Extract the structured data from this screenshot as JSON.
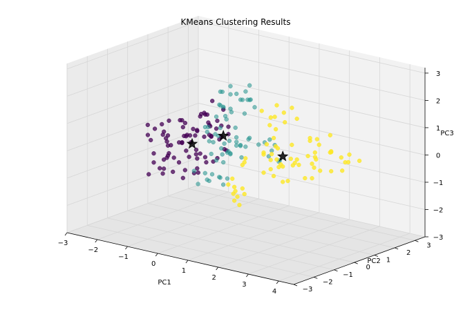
{
  "chart_data": {
    "type": "scatter",
    "projection": "3d",
    "title": "KMeans Clustering Results",
    "xlabel": "PC1",
    "ylabel": "PC2",
    "zlabel": "PC3",
    "xlim": [
      -3,
      4.5
    ],
    "ylim": [
      -3,
      3.5
    ],
    "zlim": [
      -3,
      3.2
    ],
    "x_ticks": [
      "−3",
      "−2",
      "−1",
      "0",
      "1",
      "2",
      "3",
      "4"
    ],
    "y_ticks": [
      "−3",
      "−2",
      "−1",
      "0",
      "1",
      "2",
      "3"
    ],
    "z_ticks": [
      "−3",
      "−2",
      "−1",
      "0",
      "1",
      "2",
      "3"
    ],
    "grid": true,
    "colors": {
      "cluster_0": "#440154",
      "cluster_1": "#21918c",
      "cluster_2": "#fde725",
      "pane_left": "#ebebeb",
      "pane_back": "#f2f2f2",
      "pane_floor": "#e5e5e5",
      "grid": "#d6d6d6"
    },
    "series": [
      {
        "cluster": 0,
        "color": "#440154",
        "alpha": 0.75,
        "x": [
          -1.5,
          -1.2,
          -1.0,
          -0.9,
          -1.3,
          -0.7,
          -1.1,
          -0.5,
          -0.9,
          -1.7,
          -1.4,
          -0.6,
          -1.0,
          -0.8,
          -1.2,
          -0.4,
          -0.3,
          -1.6,
          -0.7,
          -1.1,
          -0.9,
          -1.3,
          -0.5,
          -0.8,
          -1.0,
          -0.2,
          -0.6,
          -1.4,
          -0.9,
          -1.2,
          -0.7,
          -0.5,
          -1.1,
          -0.8,
          -0.3,
          -1.5,
          -1.0,
          -0.6,
          -0.9,
          -1.3,
          -0.7,
          -0.4,
          -1.2,
          -0.8,
          -1.0,
          -0.5,
          -1.6,
          -0.9,
          -0.6,
          -1.1,
          -2.2,
          -2.0,
          -1.8,
          -2.4,
          -1.9,
          -2.1,
          -1.7,
          -1.5,
          -2.3,
          -1.8,
          -0.1,
          -0.2,
          0.0,
          -0.3,
          -0.1,
          -0.4,
          0.1,
          -0.2,
          -0.5,
          -0.3,
          -0.8,
          -1.0,
          -0.7,
          -0.9,
          -0.6,
          -1.2,
          -1.4,
          -1.1,
          -0.5,
          -0.6
        ],
        "y": [
          -0.5,
          0.2,
          0.6,
          -0.3,
          0.4,
          0.0,
          -0.8,
          0.5,
          1.0,
          0.1,
          -0.4,
          0.8,
          0.3,
          -0.6,
          0.7,
          0.2,
          -0.2,
          -0.1,
          0.4,
          1.2,
          -1.0,
          0.0,
          0.9,
          0.1,
          -0.3,
          0.6,
          -0.5,
          0.5,
          0.3,
          -0.7,
          1.1,
          -0.1,
          0.2,
          0.7,
          0.4,
          0.3,
          -0.2,
          0.0,
          -0.4,
          0.9,
          0.6,
          1.0,
          -0.1,
          0.2,
          0.8,
          -0.6,
          0.6,
          0.1,
          0.3,
          0.5,
          -0.2,
          0.4,
          0.0,
          0.1,
          -0.5,
          0.6,
          0.9,
          -0.3,
          0.3,
          -0.1,
          0.1,
          -0.4,
          0.5,
          0.7,
          -0.2,
          0.3,
          0.0,
          0.8,
          0.2,
          -0.6,
          -1.5,
          -1.2,
          -1.7,
          -0.9,
          -1.3,
          -1.4,
          -1.1,
          -1.8,
          -1.0,
          -2.0
        ],
        "z": [
          0.3,
          -0.4,
          0.8,
          -0.9,
          0.1,
          0.5,
          -0.2,
          -0.7,
          0.0,
          0.6,
          -0.1,
          0.4,
          -1.2,
          0.2,
          -0.5,
          0.7,
          -0.3,
          -0.6,
          1.0,
          0.3,
          0.2,
          -0.8,
          0.1,
          -0.4,
          0.9,
          -0.2,
          0.5,
          0.0,
          -1.0,
          0.4,
          -0.1,
          1.2,
          -0.6,
          0.6,
          -0.5,
          -0.2,
          0.3,
          -0.3,
          0.7,
          -0.9,
          0.2,
          -0.4,
          0.8,
          -1.1,
          0.0,
          0.3,
          -0.3,
          0.5,
          -0.7,
          0.1,
          0.4,
          -0.2,
          0.2,
          -0.1,
          0.0,
          -0.4,
          0.3,
          -0.6,
          0.1,
          0.5,
          1.0,
          1.4,
          0.7,
          1.2,
          0.5,
          1.6,
          0.9,
          0.3,
          1.1,
          0.8,
          -0.5,
          -0.3,
          -0.6,
          -0.8,
          -0.1,
          -0.4,
          -0.2,
          -0.7,
          -0.9,
          -0.3
        ]
      },
      {
        "cluster": 1,
        "color": "#21918c",
        "alpha": 0.55,
        "x": [
          0.0,
          0.2,
          -0.3,
          0.4,
          0.1,
          -0.2,
          0.5,
          0.3,
          -0.1,
          0.6,
          0.0,
          0.2,
          0.4,
          -0.4,
          0.1,
          0.3,
          -0.2,
          0.5,
          0.0,
          0.7,
          -0.3,
          0.2,
          0.4,
          0.1,
          -0.1,
          0.6,
          0.3,
          -0.5,
          0.0,
          0.2,
          -0.6,
          -0.4,
          -0.2,
          0.0,
          -0.3,
          0.1,
          -0.5,
          -0.1,
          0.2,
          -0.4,
          0.0,
          -0.2,
          0.3,
          -0.7,
          0.1,
          -0.3,
          0.0,
          -0.6,
          0.2,
          -0.4,
          1.0,
          1.3,
          0.8,
          1.6,
          1.1,
          1.4,
          0.9,
          1.2,
          1.7,
          1.0,
          0.7,
          0.4,
          1.0,
          0.6,
          0.8,
          0.9,
          1.3,
          1.1,
          0.5,
          1.5
        ],
        "y": [
          0.0,
          0.3,
          -0.2,
          0.5,
          -0.4,
          0.2,
          0.1,
          -0.3,
          0.6,
          0.0,
          0.4,
          -0.1,
          0.3,
          0.1,
          -0.5,
          0.7,
          0.2,
          -0.2,
          0.5,
          0.3,
          -0.1,
          0.8,
          -0.3,
          0.2,
          0.4,
          0.0,
          -0.6,
          0.3,
          0.6,
          -0.2,
          1.0,
          1.2,
          1.4,
          0.9,
          1.1,
          1.3,
          0.8,
          1.5,
          1.0,
          1.2,
          1.6,
          0.9,
          1.1,
          1.3,
          1.4,
          0.7,
          1.2,
          1.0,
          1.5,
          0.8,
          0.5,
          0.7,
          0.3,
          0.6,
          0.9,
          0.4,
          0.2,
          1.0,
          0.5,
          0.8,
          -1.6,
          -1.8,
          -1.4,
          -1.9,
          -1.5,
          -2.0,
          -1.7,
          -1.6,
          -1.2,
          -1.8
        ],
        "z": [
          0.5,
          -0.2,
          0.8,
          0.1,
          0.4,
          -0.5,
          0.9,
          0.2,
          -0.3,
          0.6,
          1.0,
          -0.1,
          0.3,
          0.7,
          0.0,
          -0.4,
          1.1,
          0.5,
          -0.2,
          0.2,
          0.6,
          0.0,
          0.4,
          1.2,
          -0.6,
          0.3,
          0.8,
          0.1,
          -0.3,
          0.9,
          1.2,
          1.6,
          1.4,
          1.8,
          1.0,
          1.5,
          1.3,
          1.7,
          1.1,
          1.9,
          1.4,
          1.2,
          1.6,
          1.0,
          2.0,
          1.3,
          1.5,
          1.7,
          1.2,
          1.8,
          0.3,
          0.1,
          0.5,
          -0.2,
          0.4,
          0.0,
          0.6,
          0.2,
          -0.1,
          0.3,
          -0.5,
          -0.2,
          -0.4,
          -0.6,
          -0.3,
          -0.1,
          -0.5,
          -0.3,
          -0.7,
          -0.2
        ]
      },
      {
        "cluster": 2,
        "color": "#fde725",
        "alpha": 0.8,
        "x": [
          1.5,
          1.8,
          2.1,
          1.3,
          2.4,
          1.7,
          2.0,
          1.4,
          2.6,
          1.9,
          2.2,
          1.6,
          2.8,
          1.2,
          2.3,
          2.5,
          1.8,
          2.1,
          1.5,
          2.7,
          1.9,
          2.3,
          1.4,
          2.6,
          2.0,
          1.7,
          2.4,
          2.9,
          1.6,
          2.2,
          3.0,
          3.2,
          2.9,
          3.4,
          3.1,
          3.3,
          3.0,
          3.5,
          3.2,
          2.8,
          3.6,
          3.1,
          3.3,
          3.4,
          2.9,
          3.7,
          3.0,
          3.5,
          3.2,
          3.8,
          1.2,
          1.5,
          1.0,
          1.7,
          1.3,
          1.6,
          1.1,
          1.8,
          1.4,
          1.2,
          0.8,
          1.1,
          0.9,
          1.3,
          1.0,
          1.2,
          0.7,
          1.4,
          1.0,
          1.1
        ],
        "y": [
          0.0,
          0.5,
          -0.5,
          0.3,
          0.1,
          -0.3,
          0.8,
          -0.8,
          0.4,
          0.0,
          -0.4,
          0.6,
          -0.2,
          -0.6,
          0.2,
          1.0,
          -0.1,
          0.3,
          -0.9,
          0.6,
          0.1,
          -0.7,
          0.5,
          -0.3,
          0.9,
          0.2,
          -0.5,
          0.3,
          0.0,
          -0.1,
          0.5,
          0.8,
          0.2,
          1.0,
          -0.2,
          0.6,
          0.3,
          1.2,
          0.0,
          0.7,
          0.9,
          0.4,
          -0.1,
          1.4,
          0.2,
          0.6,
          1.1,
          0.3,
          0.8,
          1.3,
          -1.0,
          -1.3,
          -0.8,
          -1.5,
          -1.1,
          -1.2,
          -0.9,
          -1.4,
          -1.6,
          -1.0,
          1.4,
          1.6,
          1.2,
          1.7,
          1.3,
          1.5,
          1.1,
          1.8,
          1.4,
          1.2
        ],
        "z": [
          0.2,
          -0.3,
          0.5,
          -0.6,
          0.0,
          0.4,
          -0.2,
          0.1,
          -0.5,
          0.6,
          0.3,
          -0.4,
          0.2,
          -0.1,
          0.7,
          -0.3,
          0.1,
          -0.7,
          0.3,
          0.0,
          0.5,
          -0.2,
          -0.5,
          0.4,
          -0.1,
          0.8,
          0.2,
          -0.4,
          0.6,
          -0.6,
          0.8,
          0.5,
          1.0,
          0.3,
          0.6,
          1.2,
          0.4,
          0.1,
          0.7,
          0.9,
          0.2,
          -0.1,
          0.5,
          0.3,
          1.1,
          0.0,
          0.4,
          0.7,
          -0.2,
          0.2,
          -0.8,
          -1.0,
          -0.6,
          -1.2,
          -0.9,
          -0.7,
          -1.1,
          -0.8,
          -0.5,
          -1.3,
          1.0,
          1.2,
          0.8,
          1.4,
          1.1,
          0.9,
          1.3,
          1.0,
          1.5,
          0.7
        ]
      }
    ],
    "centroids": {
      "marker": "star",
      "color": "#000000",
      "x": [
        -1.0,
        0.1,
        2.0
      ],
      "y": [
        0.2,
        0.1,
        0.2
      ],
      "z": [
        -0.1,
        0.5,
        0.2
      ]
    }
  }
}
